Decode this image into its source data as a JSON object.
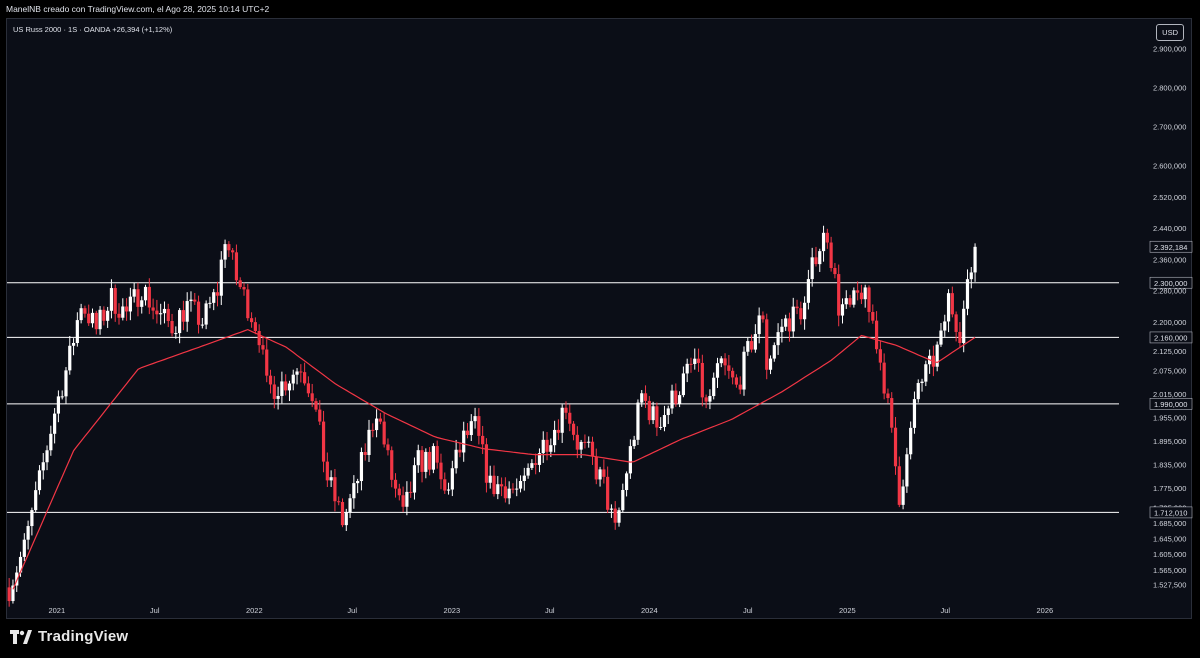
{
  "header": {
    "caption": "ManelNB creado con TradingView.com, el Ago 28, 2025 10:14 UTC+2"
  },
  "legend": {
    "text": "US Russ 2000 · 1S · OANDA  +26,394 (+1,12%)"
  },
  "currency": "USD",
  "footer": {
    "brand": "TradingView"
  },
  "colors": {
    "background": "#0b0e17",
    "bull": "#ffffff",
    "bear": "#f23645",
    "moving_average": "#f23645",
    "horizontal_lines": "#ffffff",
    "axis_text": "#d1d4dc"
  },
  "chart_data": {
    "type": "candlestick",
    "symbol": "US Russ 2000",
    "interval": "1S",
    "source": "OANDA",
    "change": "+26,394 (+1,12%)",
    "x_axis_labels": [
      {
        "label": "2021",
        "date": "2021-01-01"
      },
      {
        "label": "Jul",
        "date": "2021-07-01"
      },
      {
        "label": "2022",
        "date": "2022-01-01"
      },
      {
        "label": "Jul",
        "date": "2022-07-01"
      },
      {
        "label": "2023",
        "date": "2023-01-01"
      },
      {
        "label": "Jul",
        "date": "2023-07-01"
      },
      {
        "label": "2024",
        "date": "2024-01-01"
      },
      {
        "label": "Jul",
        "date": "2024-07-01"
      },
      {
        "label": "2025",
        "date": "2025-01-01"
      },
      {
        "label": "Jul",
        "date": "2025-07-01"
      },
      {
        "label": "2026",
        "date": "2026-01-01"
      }
    ],
    "y_axis_labels": [
      "2.900,000",
      "2.800,000",
      "2.700,000",
      "2.600,000",
      "2.520,000",
      "2.440,000",
      "2.360,000",
      "2.280,000",
      "2.200,000",
      "2.125,000",
      "2.075,000",
      "2.015,000",
      "1.955,000",
      "1.895,000",
      "1.835,000",
      "1.775,000",
      "1.725,000",
      "1.685,000",
      "1.645,000",
      "1.605,000",
      "1.565,000",
      "1.527,500"
    ],
    "horizontal_lines": [
      {
        "value": 2300,
        "label": "2.300,000"
      },
      {
        "value": 2160,
        "label": "2.160,000"
      },
      {
        "value": 1990,
        "label": "1.990,000"
      },
      {
        "value": 1712,
        "label": "1.712,010"
      }
    ],
    "last_price": {
      "value": 2392.184,
      "label": "2.392,184"
    },
    "close_path": [
      [
        "2020-10-05",
        1520
      ],
      [
        "2020-11-02",
        1620
      ],
      [
        "2020-11-30",
        1790
      ],
      [
        "2020-12-28",
        1970
      ],
      [
        "2021-01-25",
        2110
      ],
      [
        "2021-02-15",
        2250
      ],
      [
        "2021-03-15",
        2180
      ],
      [
        "2021-04-12",
        2260
      ],
      [
        "2021-05-10",
        2220
      ],
      [
        "2021-06-07",
        2290
      ],
      [
        "2021-07-05",
        2220
      ],
      [
        "2021-08-02",
        2190
      ],
      [
        "2021-08-30",
        2240
      ],
      [
        "2021-09-27",
        2200
      ],
      [
        "2021-10-25",
        2280
      ],
      [
        "2021-11-08",
        2420
      ],
      [
        "2021-11-29",
        2310
      ],
      [
        "2021-12-27",
        2220
      ],
      [
        "2022-01-10",
        2170
      ],
      [
        "2022-01-24",
        2030
      ],
      [
        "2022-02-21",
        2040
      ],
      [
        "2022-03-28",
        2090
      ],
      [
        "2022-04-18",
        2020
      ],
      [
        "2022-05-16",
        1800
      ],
      [
        "2022-06-13",
        1690
      ],
      [
        "2022-07-04",
        1760
      ],
      [
        "2022-08-15",
        1980
      ],
      [
        "2022-09-12",
        1800
      ],
      [
        "2022-10-03",
        1700
      ],
      [
        "2022-10-31",
        1840
      ],
      [
        "2022-11-28",
        1850
      ],
      [
        "2022-12-19",
        1760
      ],
      [
        "2023-01-23",
        1900
      ],
      [
        "2023-02-13",
        1930
      ],
      [
        "2023-03-13",
        1780
      ],
      [
        "2023-04-10",
        1780
      ],
      [
        "2023-05-08",
        1760
      ],
      [
        "2023-06-05",
        1860
      ],
      [
        "2023-07-10",
        1930
      ],
      [
        "2023-07-31",
        1990
      ],
      [
        "2023-08-21",
        1890
      ],
      [
        "2023-09-11",
        1860
      ],
      [
        "2023-10-09",
        1780
      ],
      [
        "2023-10-30",
        1660
      ],
      [
        "2023-11-20",
        1820
      ],
      [
        "2023-12-18",
        2010
      ],
      [
        "2024-01-15",
        1940
      ],
      [
        "2024-02-12",
        2000
      ],
      [
        "2024-03-25",
        2100
      ],
      [
        "2024-04-15",
        1980
      ],
      [
        "2024-05-13",
        2090
      ],
      [
        "2024-06-10",
        2030
      ],
      [
        "2024-07-08",
        2150
      ],
      [
        "2024-07-29",
        2220
      ],
      [
        "2024-08-05",
        2090
      ],
      [
        "2024-09-02",
        2190
      ],
      [
        "2024-10-14",
        2240
      ],
      [
        "2024-11-04",
        2380
      ],
      [
        "2024-11-25",
        2430
      ],
      [
        "2024-12-16",
        2240
      ],
      [
        "2025-01-06",
        2230
      ],
      [
        "2025-01-27",
        2280
      ],
      [
        "2025-02-17",
        2200
      ],
      [
        "2025-03-10",
        2050
      ],
      [
        "2025-04-07",
        1760
      ],
      [
        "2025-04-21",
        1850
      ],
      [
        "2025-05-12",
        2040
      ],
      [
        "2025-06-02",
        2080
      ],
      [
        "2025-06-23",
        2150
      ],
      [
        "2025-07-07",
        2260
      ],
      [
        "2025-07-28",
        2180
      ],
      [
        "2025-08-11",
        2280
      ],
      [
        "2025-08-25",
        2392
      ]
    ],
    "ma_path": [
      [
        "2020-10-12",
        1515
      ],
      [
        "2021-02-01",
        1870
      ],
      [
        "2021-06-01",
        2080
      ],
      [
        "2021-10-01",
        2140
      ],
      [
        "2021-12-20",
        2180
      ],
      [
        "2022-03-01",
        2135
      ],
      [
        "2022-06-01",
        2040
      ],
      [
        "2022-09-01",
        1965
      ],
      [
        "2022-12-01",
        1905
      ],
      [
        "2023-03-01",
        1875
      ],
      [
        "2023-06-01",
        1860
      ],
      [
        "2023-09-01",
        1860
      ],
      [
        "2023-12-01",
        1840
      ],
      [
        "2024-03-01",
        1900
      ],
      [
        "2024-06-01",
        1950
      ],
      [
        "2024-09-01",
        2020
      ],
      [
        "2024-12-01",
        2100
      ],
      [
        "2025-01-27",
        2165
      ],
      [
        "2025-04-01",
        2140
      ],
      [
        "2025-06-15",
        2095
      ],
      [
        "2025-08-25",
        2160
      ]
    ],
    "xlim": [
      "2020-10-01",
      "2026-05-18"
    ],
    "ylim": [
      1480,
      2960
    ],
    "grid": false
  }
}
